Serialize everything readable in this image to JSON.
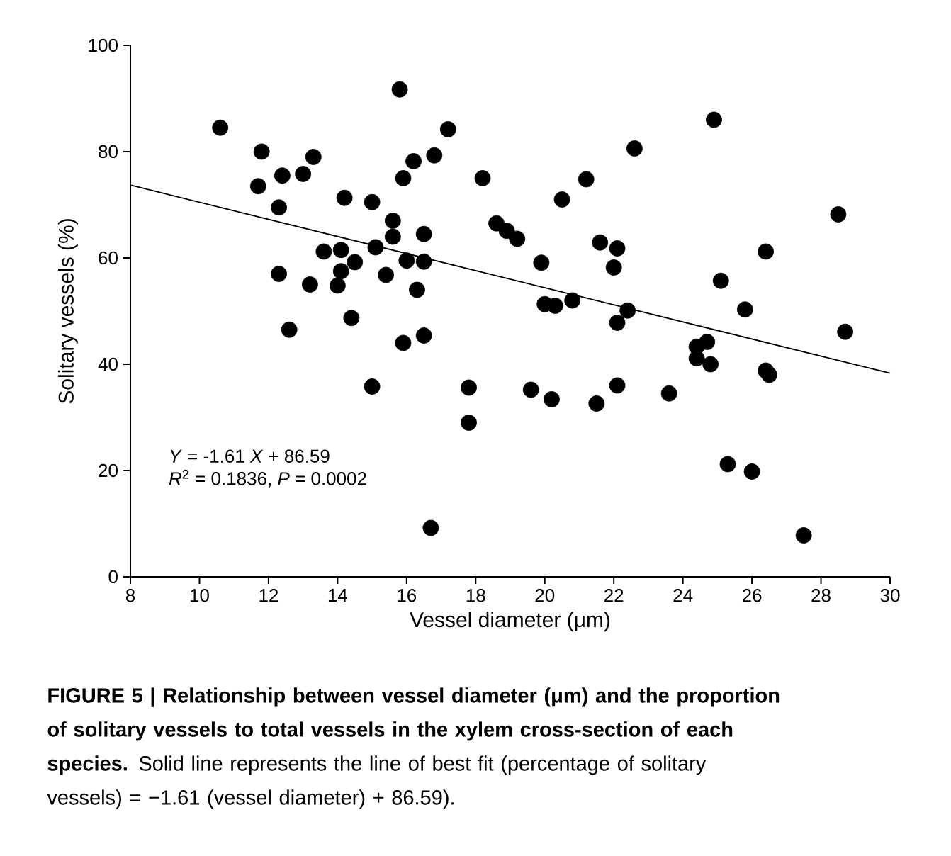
{
  "chart_data": {
    "type": "scatter",
    "xlabel": "Vessel diameter (μm)",
    "ylabel": "Solitary vessels (%)",
    "xlim": [
      8,
      30
    ],
    "ylim": [
      0,
      100
    ],
    "xticks": [
      8,
      10,
      12,
      14,
      16,
      18,
      20,
      22,
      24,
      26,
      28,
      30
    ],
    "yticks": [
      0,
      20,
      40,
      60,
      80,
      100
    ],
    "series": [
      {
        "color": "#000000",
        "marker": "circle",
        "x": [
          10.6,
          11.7,
          11.8,
          12.3,
          12.3,
          12.4,
          12.6,
          13,
          13.2,
          13.3,
          13.6,
          14,
          14.1,
          14.1,
          14.2,
          14.4,
          14.5,
          15,
          15,
          15.1,
          15.4,
          15.6,
          15.6,
          15.8,
          15.9,
          15.9,
          16,
          16.2,
          16.3,
          16.5,
          16.5,
          16.5,
          16.7,
          16.8,
          17.2,
          17.8,
          17.8,
          18.2,
          18.6,
          18.9,
          19.2,
          19.6,
          19.9,
          20,
          20.2,
          20.3,
          20.5,
          20.8,
          21.2,
          21.5,
          21.6,
          22,
          22.1,
          22.1,
          22.1,
          22.4,
          22.6,
          23.6,
          24.4,
          24.4,
          24.7,
          24.8,
          24.9,
          25.1,
          25.3,
          25.8,
          26,
          26.4,
          26.4,
          26.5,
          27.5,
          28.5,
          28.7
        ],
        "values": [
          84.5,
          73.5,
          80,
          69.5,
          57,
          75.5,
          46.5,
          75.8,
          55,
          79,
          61.2,
          54.8,
          61.5,
          57.5,
          71.3,
          48.7,
          59.2,
          35.8,
          70.5,
          62,
          56.8,
          64,
          67,
          91.7,
          44,
          75,
          59.5,
          78.2,
          54,
          64.5,
          59.3,
          45.4,
          9.2,
          79.3,
          84.2,
          35.6,
          29,
          75,
          66.5,
          65.1,
          63.6,
          35.2,
          59.1,
          51.3,
          33.4,
          51,
          71,
          52,
          74.8,
          32.6,
          62.9,
          58.2,
          47.8,
          36,
          61.8,
          50.1,
          80.6,
          34.5,
          41.1,
          43.3,
          44.2,
          40,
          86,
          55.7,
          21.2,
          50.3,
          19.8,
          61.2,
          38.8,
          38,
          7.8,
          68.2,
          46.1
        ]
      },
      {
        "type": "line",
        "color": "#000000",
        "marker": "none",
        "line_style": "solid",
        "x": [
          8,
          30
        ],
        "values": [
          73.7,
          38.3
        ]
      }
    ],
    "annotations": [
      "*Y* = -1.61 *X* + 86.59",
      "*R*$^{2}$ = 0.1836, *P* = 0.0002",
      "**FIGURE 5 | Relationship between vessel diameter (μm) and the proportion of solitary vessels to total vessels in the xylem cross-section of each species.** Solid line represents the line of best fit (percentage of solitary vessels) = −1.61 (vessel diameter) + 86.59)."
    ]
  }
}
